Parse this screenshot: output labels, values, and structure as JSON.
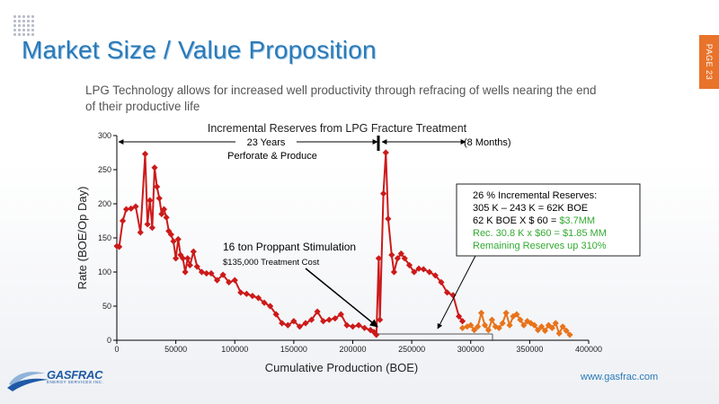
{
  "slide": {
    "title": "Market Size / Value Proposition",
    "page_label": "PAGE 23",
    "subtitle": "LPG Technology allows for increased well productivity through refracing of wells nearing the end of their productive life",
    "website": "www.gasfrac.com",
    "logo": {
      "name": "GASFRAC",
      "tagline": "ENERGY SERVICES INC."
    }
  },
  "colors": {
    "title": "#2a7ab8",
    "red_series": "#cc1a1a",
    "orange_series": "#e8731a",
    "accent_tab": "#e8732a",
    "box_green": "#33aa33"
  },
  "chart_data": {
    "type": "line",
    "title": "Incremental Reserves from LPG Fracture Treatment",
    "xlabel": "Cumulative Production (BOE)",
    "ylabel": "Rate (BOE/Op Day)",
    "xlim": [
      0,
      400000
    ],
    "ylim": [
      0,
      300
    ],
    "xticks": [
      "0",
      "50000",
      "100000",
      "150000",
      "200000",
      "250000",
      "300000",
      "350000",
      "400000"
    ],
    "yticks": [
      "0",
      "50",
      "100",
      "150",
      "200",
      "250",
      "300"
    ],
    "series": [
      {
        "color": "#cc1a1a",
        "x": [
          0,
          2000,
          5000,
          8000,
          12000,
          16000,
          20000,
          24000,
          26000,
          28000,
          30000,
          32000,
          34000,
          36000,
          38000,
          40000,
          42000,
          44000,
          46000,
          48000,
          50000,
          52000,
          54000,
          56000,
          58000,
          60000,
          62000,
          65000,
          68000,
          72000,
          76000,
          80000,
          85000,
          90000,
          95000,
          100000,
          105000,
          110000,
          115000,
          120000,
          125000,
          130000,
          135000,
          140000,
          145000,
          150000,
          155000,
          160000,
          165000,
          170000,
          175000,
          180000,
          185000,
          190000,
          195000,
          200000,
          205000,
          210000,
          215000,
          218000,
          220000,
          222000,
          223000,
          226000,
          228000,
          230000,
          233000,
          235000,
          238000,
          241000,
          244000,
          248000,
          252000,
          256000,
          260000,
          265000,
          270000,
          275000,
          280000,
          285000,
          290000,
          293000
        ],
        "y": [
          138,
          137,
          175,
          192,
          193,
          196,
          158,
          273,
          170,
          205,
          165,
          253,
          225,
          208,
          185,
          192,
          180,
          160,
          155,
          145,
          120,
          148,
          125,
          120,
          100,
          120,
          110,
          130,
          108,
          100,
          98,
          98,
          88,
          96,
          85,
          88,
          70,
          68,
          65,
          62,
          55,
          50,
          38,
          25,
          22,
          28,
          20,
          25,
          30,
          42,
          28,
          30,
          32,
          38,
          22,
          20,
          22,
          18,
          15,
          12,
          8,
          120,
          30,
          215,
          275,
          178,
          125,
          100,
          120,
          127,
          120,
          110,
          100,
          105,
          104,
          100,
          95,
          85,
          70,
          66,
          35,
          28
        ]
      },
      {
        "color": "#e8731a",
        "x": [
          293000,
          297000,
          300000,
          303000,
          306000,
          309000,
          312000,
          315000,
          318000,
          321000,
          324000,
          327000,
          330000,
          333000,
          336000,
          339000,
          342000,
          345000,
          348000,
          351000,
          354000,
          357000,
          360000,
          363000,
          366000,
          369000,
          372000,
          375000,
          378000,
          381000,
          384000
        ],
        "y": [
          18,
          20,
          22,
          15,
          20,
          40,
          22,
          15,
          30,
          20,
          18,
          25,
          40,
          22,
          35,
          38,
          30,
          22,
          28,
          25,
          22,
          15,
          20,
          14,
          22,
          18,
          25,
          10,
          20,
          14,
          8
        ]
      }
    ],
    "annotations": {
      "years_label": "23 Years",
      "years_sub": "Perforate & Produce",
      "months_label": "(8 Months)",
      "stim_label": "16 ton Proppant Stimulation",
      "stim_cost": "$135,000 Treatment Cost",
      "box": {
        "line1": "26 % Incremental Reserves:",
        "line2": "305 K – 243 K =  62K BOE",
        "line3_prefix": "62 K BOE X $ 60 = ",
        "line3_value": "$3.7MM",
        "line4": "Rec. 30.8 K x $60 = $1.85 MM",
        "line5": "Remaining Reserves up 310%"
      }
    }
  }
}
